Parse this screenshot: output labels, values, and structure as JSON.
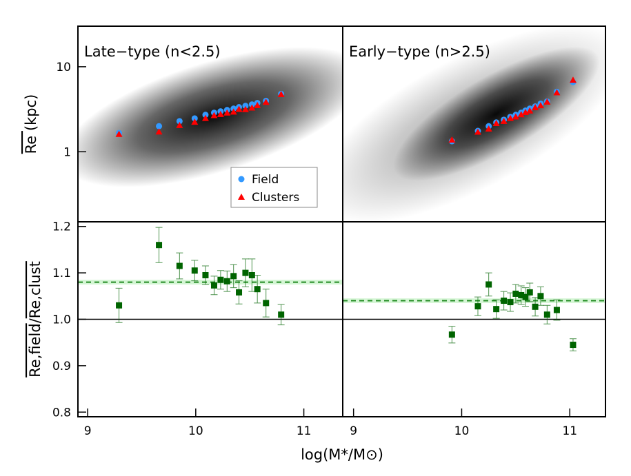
{
  "chart_data": [
    {
      "type": "scatter",
      "title": "Late−type (n<2.5)",
      "log_y": true,
      "xlim": [
        8.91,
        11.36
      ],
      "ylim": [
        0.15,
        30
      ],
      "yticks": [
        1,
        10
      ],
      "y_label": [
        "Re",
        "(kpc)"
      ],
      "legend": "lower right",
      "series": [
        {
          "name": "Field",
          "color": "#3399ff",
          "marker": "circle",
          "x": [
            9.29,
            9.66,
            9.85,
            9.99,
            10.09,
            10.17,
            10.23,
            10.29,
            10.35,
            10.4,
            10.46,
            10.52,
            10.57,
            10.65,
            10.79
          ],
          "values": [
            1.66,
            2.0,
            2.29,
            2.47,
            2.72,
            2.88,
            2.99,
            3.1,
            3.22,
            3.35,
            3.47,
            3.6,
            3.75,
            3.97,
            4.79
          ]
        },
        {
          "name": "Clusters",
          "color": "#ff0000",
          "marker": "triangle",
          "x": [
            9.29,
            9.66,
            9.85,
            9.99,
            10.09,
            10.17,
            10.23,
            10.29,
            10.35,
            10.4,
            10.46,
            10.52,
            10.57,
            10.65,
            10.79
          ],
          "values": [
            1.61,
            1.72,
            2.05,
            2.24,
            2.48,
            2.68,
            2.76,
            2.87,
            2.95,
            3.17,
            3.15,
            3.29,
            3.52,
            3.84,
            4.74
          ]
        }
      ]
    },
    {
      "type": "scatter",
      "title": "Early−type (n>2.5)",
      "log_y": true,
      "xlim": [
        8.9,
        11.33
      ],
      "ylim": [
        0.15,
        30
      ],
      "series": [
        {
          "color": "#3399ff",
          "marker": "circle",
          "x": [
            9.91,
            10.15,
            10.25,
            10.32,
            10.39,
            10.45,
            10.5,
            10.55,
            10.59,
            10.63,
            10.68,
            10.73,
            10.79,
            10.88,
            11.03
          ],
          "values": [
            1.33,
            1.76,
            2.0,
            2.21,
            2.38,
            2.57,
            2.72,
            2.88,
            3.05,
            3.22,
            3.41,
            3.68,
            3.9,
            5.07,
            6.6
          ]
        },
        {
          "color": "#ff0000",
          "marker": "triangle",
          "x": [
            9.91,
            10.15,
            10.25,
            10.32,
            10.39,
            10.45,
            10.5,
            10.55,
            10.59,
            10.63,
            10.68,
            10.73,
            10.79,
            10.88,
            11.03
          ],
          "values": [
            1.38,
            1.71,
            1.86,
            2.16,
            2.29,
            2.48,
            2.58,
            2.74,
            2.91,
            3.04,
            3.32,
            3.5,
            3.86,
            4.97,
            6.98
          ]
        }
      ]
    },
    {
      "type": "errorbar",
      "xlim": [
        8.91,
        11.36
      ],
      "ylim": [
        0.79,
        1.21
      ],
      "xticks": [
        9,
        10,
        11
      ],
      "yticks": [
        0.8,
        0.9,
        {
          "value": 1.0,
          "label": "1.0"
        },
        1.1,
        1.2
      ],
      "y_label": [
        "Re,field",
        "/",
        "Re,clust"
      ],
      "x_label": "log(M*/M⊙)",
      "reference_line": 1,
      "mean": 1.08,
      "mean_band": [
        1.075,
        1.085
      ],
      "color": "#006400",
      "mean_color": "#228b22",
      "band_color": "#d4f5d4",
      "x": [
        9.29,
        9.66,
        9.85,
        9.99,
        10.09,
        10.17,
        10.23,
        10.29,
        10.35,
        10.4,
        10.46,
        10.52,
        10.57,
        10.65,
        10.79
      ],
      "values": [
        1.03,
        1.16,
        1.115,
        1.105,
        1.095,
        1.073,
        1.085,
        1.082,
        1.093,
        1.058,
        1.1,
        1.095,
        1.065,
        1.035,
        1.01
      ],
      "errors": [
        0.037,
        0.038,
        0.028,
        0.022,
        0.02,
        0.02,
        0.02,
        0.022,
        0.025,
        0.025,
        0.03,
        0.035,
        0.03,
        0.03,
        0.022
      ]
    },
    {
      "type": "errorbar",
      "xlim": [
        8.9,
        11.33
      ],
      "ylim": [
        0.79,
        1.21
      ],
      "xticks": [
        9,
        10,
        11
      ],
      "reference_line": 1,
      "mean": 1.04,
      "mean_band": [
        1.035,
        1.045
      ],
      "color": "#006400",
      "mean_color": "#228b22",
      "band_color": "#d4f5d4",
      "x": [
        9.91,
        10.15,
        10.25,
        10.32,
        10.39,
        10.45,
        10.5,
        10.55,
        10.59,
        10.63,
        10.68,
        10.73,
        10.79,
        10.88,
        11.03
      ],
      "values": [
        0.967,
        1.028,
        1.075,
        1.022,
        1.04,
        1.037,
        1.055,
        1.052,
        1.048,
        1.058,
        1.027,
        1.05,
        1.01,
        1.02,
        0.945
      ],
      "errors": [
        0.018,
        0.02,
        0.025,
        0.02,
        0.02,
        0.02,
        0.02,
        0.02,
        0.02,
        0.02,
        0.02,
        0.02,
        0.02,
        0.022,
        0.013
      ]
    }
  ]
}
